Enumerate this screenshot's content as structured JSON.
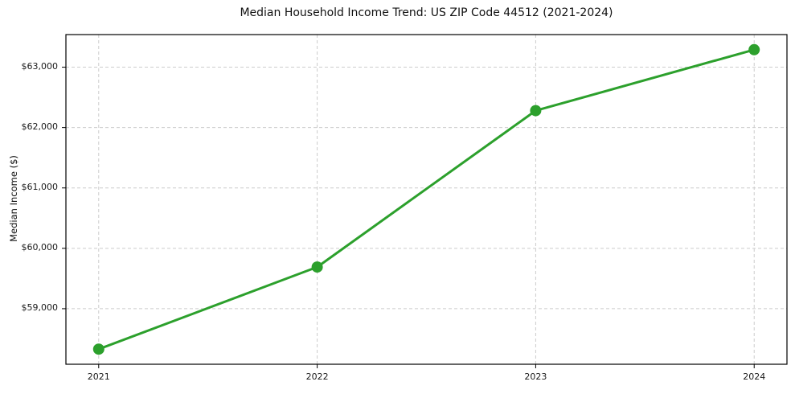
{
  "chart_data": {
    "type": "line",
    "title": "Median Household Income Trend: US ZIP Code 44512 (2021-2024)",
    "xlabel": "",
    "ylabel": "Median Income ($)",
    "x": [
      2021,
      2022,
      2023,
      2024
    ],
    "x_tick_labels": [
      "2021",
      "2022",
      "2023",
      "2024"
    ],
    "series": [
      {
        "name": "Median Household Income",
        "values": [
          58330,
          59690,
          62280,
          63290
        ]
      }
    ],
    "y_tick_values": [
      59000,
      60000,
      61000,
      62000,
      63000
    ],
    "y_tick_labels": [
      "$59,000",
      "$60,000",
      "$61,000",
      "$62,000",
      "$63,000"
    ],
    "ylim": [
      58080,
      63540
    ],
    "xlim": [
      2020.85,
      2024.15
    ],
    "grid": "both-dashed",
    "legend_position": "none",
    "colors": {
      "line": "#2ca02c",
      "marker": "#2ca02c",
      "grid": "#cccccc",
      "spine": "#000000",
      "text": "#111111",
      "background": "#ffffff"
    }
  }
}
